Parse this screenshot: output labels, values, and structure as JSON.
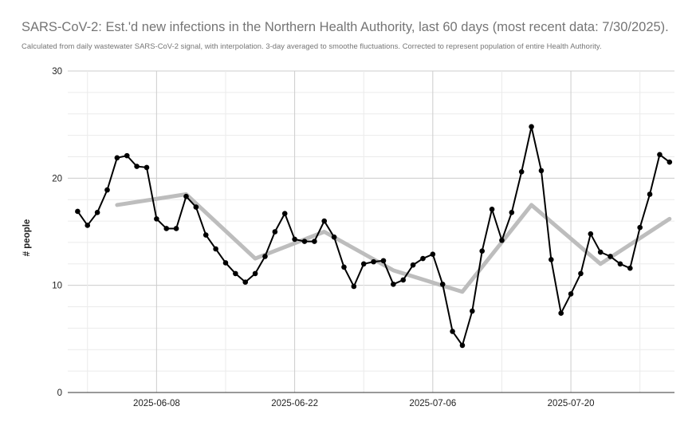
{
  "chart_data": {
    "type": "line",
    "title": "SARS-CoV-2: Est.'d new infections in the Northern Health Authority, last 60 days (most recent data: 7/30/2025).",
    "subtitle": "Calculated from daily wastewater SARS-CoV-2 signal, with interpolation. 3-day averaged to smoothe fluctuations. Corrected to represent population of entire Health Authority.",
    "xlabel": "",
    "ylabel": "# people",
    "ylim": [
      0,
      30
    ],
    "yticks": [
      0,
      10,
      20,
      30
    ],
    "xticks": [
      "2025-06-08",
      "2025-06-22",
      "2025-07-06",
      "2025-07-20"
    ],
    "grid": true,
    "series": [
      {
        "color": "#000000",
        "markers": true,
        "points": [
          [
            "2025-05-31",
            16.9
          ],
          [
            "2025-06-01",
            15.6
          ],
          [
            "2025-06-02",
            16.8
          ],
          [
            "2025-06-03",
            18.9
          ],
          [
            "2025-06-04",
            21.9
          ],
          [
            "2025-06-05",
            22.1
          ],
          [
            "2025-06-06",
            21.1
          ],
          [
            "2025-06-07",
            21.0
          ],
          [
            "2025-06-08",
            16.2
          ],
          [
            "2025-06-09",
            15.3
          ],
          [
            "2025-06-10",
            15.3
          ],
          [
            "2025-06-11",
            18.3
          ],
          [
            "2025-06-12",
            17.3
          ],
          [
            "2025-06-13",
            14.7
          ],
          [
            "2025-06-14",
            13.4
          ],
          [
            "2025-06-15",
            12.1
          ],
          [
            "2025-06-16",
            11.1
          ],
          [
            "2025-06-17",
            10.3
          ],
          [
            "2025-06-18",
            11.1
          ],
          [
            "2025-06-19",
            12.7
          ],
          [
            "2025-06-20",
            15.0
          ],
          [
            "2025-06-21",
            16.7
          ],
          [
            "2025-06-22",
            14.3
          ],
          [
            "2025-06-23",
            14.1
          ],
          [
            "2025-06-24",
            14.1
          ],
          [
            "2025-06-25",
            16.0
          ],
          [
            "2025-06-26",
            14.5
          ],
          [
            "2025-06-27",
            11.7
          ],
          [
            "2025-06-28",
            9.9
          ],
          [
            "2025-06-29",
            12.0
          ],
          [
            "2025-06-30",
            12.2
          ],
          [
            "2025-07-01",
            12.3
          ],
          [
            "2025-07-02",
            10.1
          ],
          [
            "2025-07-03",
            10.5
          ],
          [
            "2025-07-04",
            11.9
          ],
          [
            "2025-07-05",
            12.5
          ],
          [
            "2025-07-06",
            12.9
          ],
          [
            "2025-07-07",
            10.1
          ],
          [
            "2025-07-08",
            5.7
          ],
          [
            "2025-07-09",
            4.4
          ],
          [
            "2025-07-10",
            7.6
          ],
          [
            "2025-07-11",
            13.2
          ],
          [
            "2025-07-12",
            17.1
          ],
          [
            "2025-07-13",
            14.2
          ],
          [
            "2025-07-14",
            16.8
          ],
          [
            "2025-07-15",
            20.6
          ],
          [
            "2025-07-16",
            24.8
          ],
          [
            "2025-07-17",
            20.7
          ],
          [
            "2025-07-18",
            12.4
          ],
          [
            "2025-07-19",
            7.4
          ],
          [
            "2025-07-20",
            9.2
          ],
          [
            "2025-07-21",
            11.1
          ],
          [
            "2025-07-22",
            14.8
          ],
          [
            "2025-07-23",
            13.1
          ],
          [
            "2025-07-24",
            12.7
          ],
          [
            "2025-07-25",
            12.0
          ],
          [
            "2025-07-26",
            11.6
          ],
          [
            "2025-07-27",
            15.4
          ],
          [
            "2025-07-28",
            18.5
          ],
          [
            "2025-07-29",
            22.2
          ],
          [
            "2025-07-30",
            21.5
          ]
        ]
      },
      {
        "color": "#bdbdbd",
        "markers": false,
        "points": [
          [
            "2025-06-04",
            17.5
          ],
          [
            "2025-06-11",
            18.5
          ],
          [
            "2025-06-18",
            12.5
          ],
          [
            "2025-06-25",
            15.0
          ],
          [
            "2025-07-02",
            11.4
          ],
          [
            "2025-07-09",
            9.4
          ],
          [
            "2025-07-16",
            17.5
          ],
          [
            "2025-07-23",
            12.0
          ],
          [
            "2025-07-30",
            16.2
          ]
        ]
      }
    ]
  }
}
